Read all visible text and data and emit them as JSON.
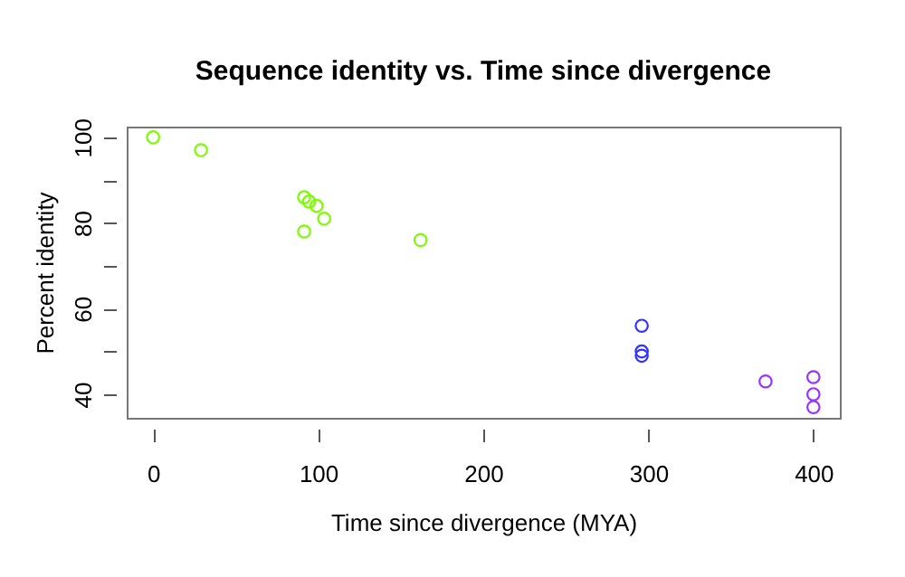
{
  "chart_data": {
    "type": "scatter",
    "title": "Sequence identity vs. Time since divergence",
    "xlabel": "Time since divergence (MYA)",
    "ylabel": "Percent identity",
    "series": [
      {
        "color": "#7cfc00",
        "x": [
          0,
          29,
          91.5,
          94.5,
          99,
          103.6,
          91.5,
          162
        ],
        "values": [
          100,
          97,
          86,
          85,
          84,
          81,
          78,
          76
        ]
      },
      {
        "color": "#3333ff",
        "x": [
          296,
          296,
          296
        ],
        "values": [
          56,
          50,
          49
        ]
      },
      {
        "color": "#9933ff",
        "x": [
          371,
          400,
          400,
          400
        ],
        "values": [
          43,
          44,
          40,
          37
        ]
      }
    ],
    "xlim": [
      -16,
      416
    ],
    "ylim": [
      34.5,
      102.5
    ],
    "xticks": [
      0,
      100,
      200,
      300,
      400
    ],
    "yticks": [
      40,
      {
        "value": 50,
        "label": null
      },
      60,
      {
        "value": 70,
        "label": null
      },
      80,
      {
        "value": 90,
        "label": null
      },
      100
    ],
    "grid": false,
    "marker": "circle",
    "legend": false
  }
}
